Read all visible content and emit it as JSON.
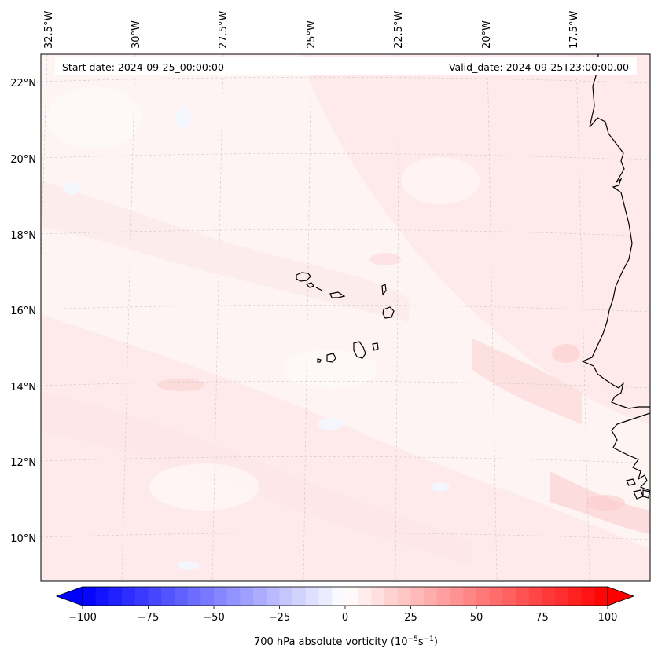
{
  "header": {
    "start_date": "Start date: 2024-09-25_00:00:00",
    "valid_date": "Valid_date: 2024-09-25T23:00:00.00"
  },
  "map": {
    "lon_labels": [
      "32.5°W",
      "30°W",
      "27.5°W",
      "25°W",
      "22.5°W",
      "20°W",
      "17.5°W"
    ],
    "lat_labels": [
      "22°N",
      "20°N",
      "18°N",
      "16°N",
      "14°N",
      "12°N",
      "10°N"
    ],
    "gridlines": true,
    "field": "700 hPa absolute vorticity",
    "background_color": "#fef4f4",
    "coast_color": "#000000"
  },
  "colorbar": {
    "ticks": [
      "−100",
      "−75",
      "−50",
      "−25",
      "0",
      "25",
      "50",
      "75",
      "100"
    ],
    "range": [
      -100,
      100
    ],
    "step": 5,
    "extend": "both",
    "cmap": "bwr",
    "label_main": "700 hPa absolute vorticity (10",
    "label_exp1": "−5",
    "label_mid": "s",
    "label_exp2": "−1",
    "label_end": ")"
  }
}
